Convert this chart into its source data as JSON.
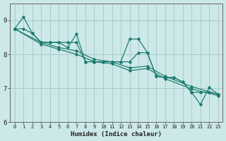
{
  "xlabel": "Humidex (Indice chaleur)",
  "bg_color": "#cce8e8",
  "grid_color": "#aacccc",
  "line_color": "#1a7a6e",
  "xlim": [
    -0.5,
    23.5
  ],
  "ylim": [
    6.0,
    9.5
  ],
  "yticks": [
    6,
    7,
    8,
    9
  ],
  "xticks": [
    0,
    1,
    2,
    3,
    4,
    5,
    6,
    7,
    8,
    9,
    10,
    11,
    12,
    13,
    14,
    15,
    16,
    17,
    18,
    19,
    20,
    21,
    22,
    23
  ],
  "series": [
    {
      "x": [
        0,
        1,
        2,
        3,
        4,
        5,
        6,
        7,
        8,
        9,
        10,
        11,
        12,
        13,
        14,
        15,
        16,
        17,
        18,
        19,
        20,
        21,
        22,
        23
      ],
      "y": [
        8.75,
        9.1,
        8.62,
        8.35,
        8.35,
        8.35,
        8.2,
        8.6,
        7.78,
        7.78,
        7.78,
        7.78,
        7.78,
        8.45,
        8.45,
        8.05,
        7.35,
        7.32,
        7.32,
        7.18,
        6.88,
        6.52,
        7.02,
        6.82
      ]
    },
    {
      "x": [
        0,
        1,
        2,
        3,
        4,
        5,
        6,
        7,
        8,
        9,
        10,
        11,
        12,
        13,
        14,
        15,
        16,
        17,
        18,
        19,
        20,
        21,
        22,
        23
      ],
      "y": [
        8.75,
        8.75,
        8.62,
        8.35,
        8.35,
        8.35,
        8.35,
        8.35,
        7.78,
        7.78,
        7.78,
        7.78,
        7.78,
        7.78,
        8.05,
        8.05,
        7.35,
        7.32,
        7.32,
        7.18,
        6.88,
        6.88,
        6.88,
        6.82
      ]
    },
    {
      "x": [
        0,
        3,
        5,
        7,
        9,
        11,
        13,
        15,
        17,
        20,
        23
      ],
      "y": [
        8.75,
        8.35,
        8.2,
        8.1,
        7.85,
        7.78,
        7.6,
        7.65,
        7.35,
        7.05,
        6.82
      ]
    },
    {
      "x": [
        0,
        3,
        5,
        7,
        9,
        11,
        13,
        15,
        17,
        20,
        23
      ],
      "y": [
        8.75,
        8.3,
        8.15,
        8.0,
        7.78,
        7.72,
        7.52,
        7.58,
        7.28,
        6.98,
        6.78
      ]
    }
  ]
}
